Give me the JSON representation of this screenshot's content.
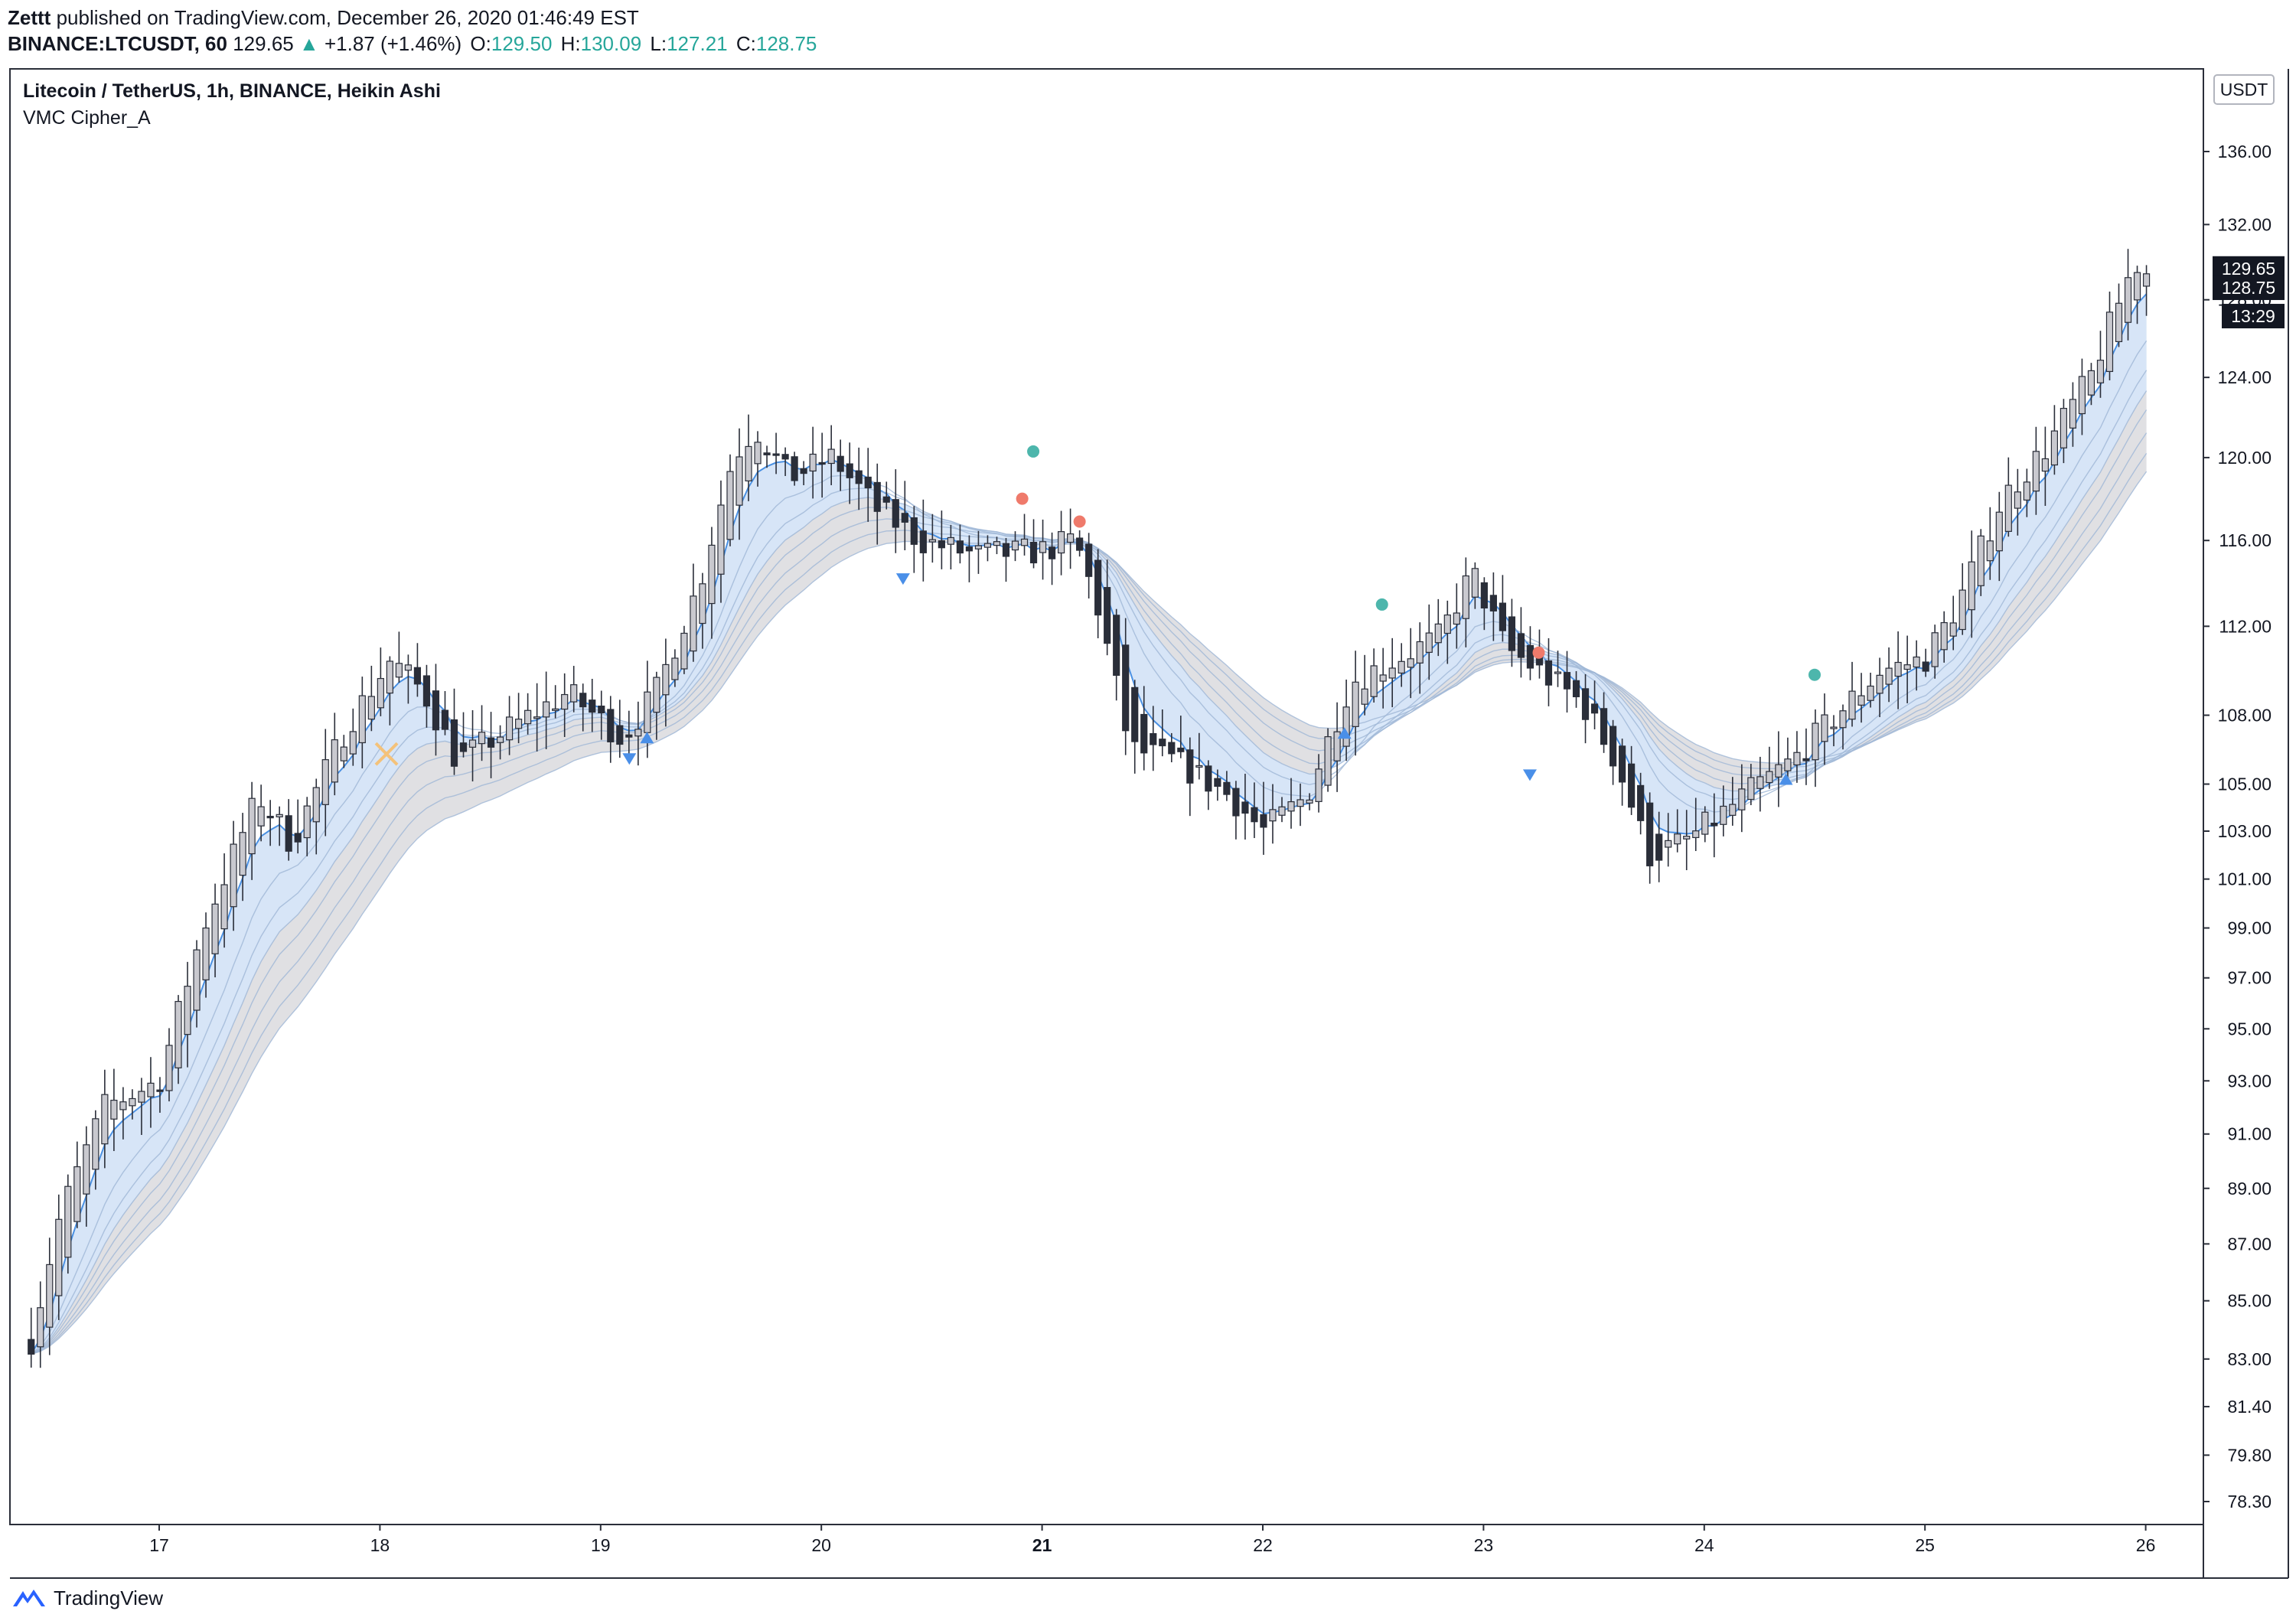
{
  "header": {
    "author": "Zettt",
    "published": "published on TradingView.com, December 26, 2020 01:46:49 EST",
    "symbol": "BINANCE:LTCUSDT, 60",
    "last_price": "129.65",
    "change": "+1.87 (+1.46%)",
    "open_label": "O:",
    "open": "129.50",
    "high_label": "H:",
    "high": "130.09",
    "low_label": "L:",
    "low": "127.21",
    "close_label": "C:",
    "close": "128.75"
  },
  "chart": {
    "title": "Litecoin / TetherUS, 1h, BINANCE, Heikin Ashi",
    "indicator": "VMC Cipher_A",
    "currency": "USDT",
    "price_badges": [
      "129.65",
      "128.75",
      "13:29"
    ],
    "colors": {
      "up_candle": "#c9c9cf",
      "down_candle": "#2a2e39",
      "ribbon_blue": "#4a90e2",
      "ribbon_fill_blue": "#d6e6f8",
      "ribbon_fill_gray": "#d5d6da",
      "green_dot": "#4db6ac",
      "red_dot": "#ef7a6b",
      "triangle_blue": "#4a8fe8",
      "x_marker": "#f4c27a"
    }
  },
  "chart_data": {
    "type": "candlestick",
    "title": "Litecoin / TetherUS, 1h, BINANCE, Heikin Ashi",
    "x_ticks": [
      "17",
      "18",
      "19",
      "20",
      "21",
      "22",
      "23",
      "24",
      "25",
      "26"
    ],
    "bold_ticks": [
      "21"
    ],
    "y_ticks": [
      "136.00",
      "132.00",
      "128.00",
      "124.00",
      "120.00",
      "116.00",
      "112.00",
      "108.00",
      "105.00",
      "103.00",
      "101.00",
      "99.00",
      "97.00",
      "95.00",
      "93.00",
      "91.00",
      "89.00",
      "87.00",
      "85.00",
      "83.00",
      "81.40",
      "79.80",
      "78.30"
    ],
    "y_scale": "log",
    "x_range": [
      16.38,
      26.42
    ],
    "price_path": [
      [
        16.4,
        83.0
      ],
      [
        16.55,
        88.0
      ],
      [
        16.75,
        92.0
      ],
      [
        17.0,
        93.0
      ],
      [
        17.2,
        99.0
      ],
      [
        17.45,
        104.5
      ],
      [
        17.6,
        102.5
      ],
      [
        17.85,
        107.5
      ],
      [
        18.05,
        110.5
      ],
      [
        18.2,
        109.0
      ],
      [
        18.35,
        106.0
      ],
      [
        18.6,
        107.5
      ],
      [
        18.85,
        109.0
      ],
      [
        19.1,
        107.0
      ],
      [
        19.25,
        109.0
      ],
      [
        19.45,
        114.0
      ],
      [
        19.6,
        120.0
      ],
      [
        19.7,
        121.5
      ],
      [
        19.85,
        119.0
      ],
      [
        20.05,
        120.0
      ],
      [
        20.25,
        117.5
      ],
      [
        20.45,
        116.0
      ],
      [
        20.7,
        115.3
      ],
      [
        21.0,
        115.5
      ],
      [
        21.15,
        116.0
      ],
      [
        21.25,
        113.0
      ],
      [
        21.4,
        106.5
      ],
      [
        21.6,
        106.0
      ],
      [
        21.85,
        104.5
      ],
      [
        22.0,
        103.0
      ],
      [
        22.2,
        104.5
      ],
      [
        22.4,
        109.5
      ],
      [
        22.6,
        110.5
      ],
      [
        22.8,
        111.5
      ],
      [
        22.95,
        114.5
      ],
      [
        23.1,
        111.0
      ],
      [
        23.25,
        110.0
      ],
      [
        23.45,
        108.5
      ],
      [
        23.6,
        106.0
      ],
      [
        23.75,
        102.0
      ],
      [
        23.9,
        102.5
      ],
      [
        24.05,
        103.5
      ],
      [
        24.25,
        105.0
      ],
      [
        24.4,
        106.0
      ],
      [
        24.6,
        108.0
      ],
      [
        24.8,
        110.0
      ],
      [
        25.0,
        110.5
      ],
      [
        25.15,
        113.0
      ],
      [
        25.35,
        118.0
      ],
      [
        25.55,
        120.5
      ],
      [
        25.75,
        124.0
      ],
      [
        25.95,
        130.0
      ],
      [
        26.05,
        129.0
      ]
    ],
    "signals": {
      "green_dots": [
        [
          20.96,
          120.3
        ],
        [
          22.54,
          113.0
        ],
        [
          24.5,
          109.8
        ]
      ],
      "red_dots": [
        [
          20.91,
          118.0
        ],
        [
          21.17,
          116.9
        ],
        [
          23.25,
          110.8
        ]
      ],
      "triangles_down": [
        [
          20.37,
          114.2
        ],
        [
          19.13,
          106.1
        ],
        [
          23.21,
          105.4
        ]
      ],
      "triangles_up": [
        [
          19.21,
          107.0
        ],
        [
          22.37,
          107.2
        ],
        [
          24.37,
          105.2
        ]
      ],
      "x_marker": [
        [
          18.03,
          106.3
        ]
      ]
    },
    "last_price": 128.75
  }
}
